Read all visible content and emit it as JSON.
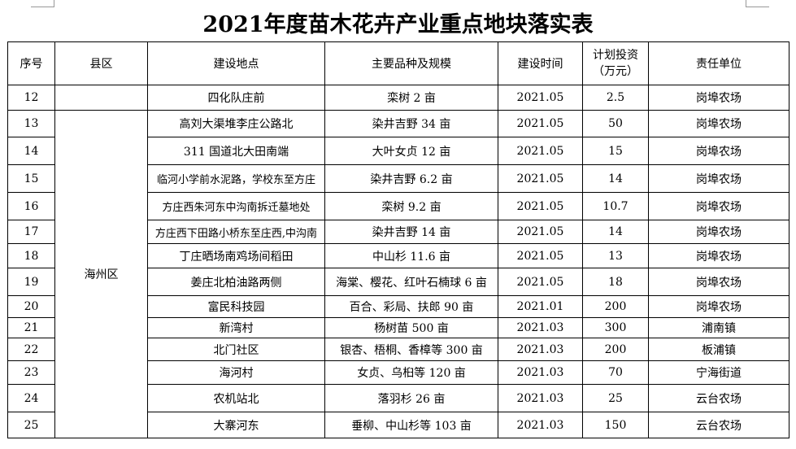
{
  "title": "2021年度苗木花卉产业重点地块落实表",
  "headers": [
    "序号",
    "县区",
    "建设地点",
    "主要品种及规模",
    "建设时间",
    "计划投资（万元）",
    "责任单位"
  ],
  "county": "海州区",
  "rows": [
    {
      "no": "12",
      "location": "四化队庄前",
      "variety": "栾树 2 亩",
      "time": "2021.05",
      "investment": "2.5",
      "unit": "岗埠农场"
    },
    {
      "no": "13",
      "location": "高刘大渠堆李庄公路北",
      "variety": "染井吉野 34 亩",
      "time": "2021.05",
      "investment": "50",
      "unit": "岗埠农场"
    },
    {
      "no": "14",
      "location": "311 国道北大田南端",
      "variety": "大叶女贞 12 亩",
      "time": "2021.05",
      "investment": "15",
      "unit": "岗埠农场"
    },
    {
      "no": "15",
      "location": "临河小学前水泥路，学校东至方庄",
      "variety": "染井吉野 6.2 亩",
      "time": "2021.05",
      "investment": "14",
      "unit": "岗埠农场"
    },
    {
      "no": "16",
      "location": "方庄西朱河东中沟南拆迁墓地处",
      "variety": "栾树 9.2 亩",
      "time": "2021.05",
      "investment": "10.7",
      "unit": "岗埠农场"
    },
    {
      "no": "17",
      "location": "方庄西下田路小桥东至庄西,中沟南",
      "variety": "染井吉野 14 亩",
      "time": "2021.05",
      "investment": "14",
      "unit": "岗埠农场"
    },
    {
      "no": "18",
      "location": "丁庄晒场南鸡场间稻田",
      "variety": "中山杉 11.6 亩",
      "time": "2021.05",
      "investment": "13",
      "unit": "岗埠农场"
    },
    {
      "no": "19",
      "location": "姜庄北柏油路两侧",
      "variety": "海棠、樱花、红叶石楠球 6 亩",
      "time": "2021.05",
      "investment": "18",
      "unit": "岗埠农场"
    },
    {
      "no": "20",
      "location": "富民科技园",
      "variety": "百合、彩局、扶郎 90 亩",
      "time": "2021.01",
      "investment": "200",
      "unit": "岗埠农场"
    },
    {
      "no": "21",
      "location": "新湾村",
      "variety": "杨树苗 500 亩",
      "time": "2021.03",
      "investment": "300",
      "unit": "浦南镇"
    },
    {
      "no": "22",
      "location": "北门社区",
      "variety": "银杏、梧桐、香樟等 300 亩",
      "time": "2021.03",
      "investment": "200",
      "unit": "板浦镇"
    },
    {
      "no": "23",
      "location": "海河村",
      "variety": "女贞、乌桕等 120 亩",
      "time": "2021.03",
      "investment": "70",
      "unit": "宁海街道"
    },
    {
      "no": "24",
      "location": "农机站北",
      "variety": "落羽杉 26 亩",
      "time": "2021.03",
      "investment": "25",
      "unit": "云台农场"
    },
    {
      "no": "25",
      "location": "大寨河东",
      "variety": "垂柳、中山杉等 103 亩",
      "time": "2021.03",
      "investment": "150",
      "unit": "云台农场"
    }
  ]
}
